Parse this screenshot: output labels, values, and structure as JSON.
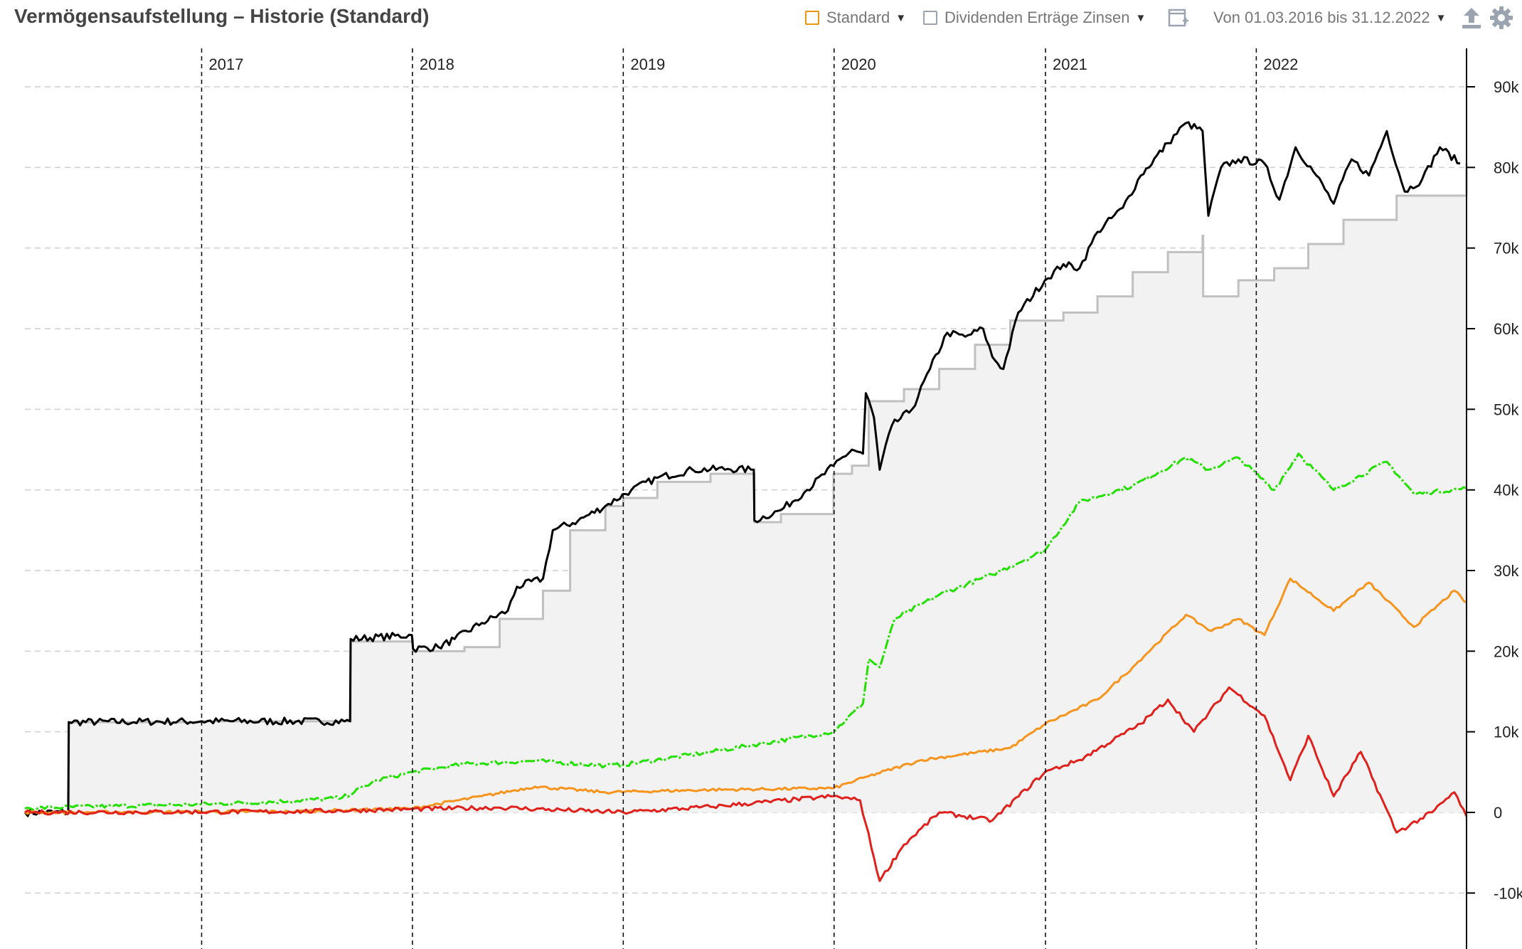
{
  "header": {
    "title": "Vermögensaufstellung – Historie (Standard)",
    "standard_label": "Standard",
    "dividends_label": "Dividenden Erträge Zinsen",
    "date_range_label": "Von 01.03.2016 bis 31.12.2022"
  },
  "icons": {
    "standard_swatch": "orange-square-icon",
    "dividends_swatch": "gray-square-icon",
    "add_chart": "add-chart-icon",
    "export": "upload-icon",
    "settings": "gear-icon",
    "dropdown": "caret-down-icon"
  },
  "colors": {
    "standard": "#f0950f",
    "dividends": "#9aa4b0",
    "total_value": "#000000",
    "invested_capital": "#c0c0c0",
    "invested_fill": "#f2f2f2",
    "green_series": "#22e000",
    "orange_series": "#f7941d",
    "red_series": "#e0201b"
  },
  "chart_data": {
    "type": "line",
    "x_type": "date",
    "xlim": [
      "2016-03-01",
      "2022-12-31"
    ],
    "ylim": [
      -13000,
      93000
    ],
    "x_ticks": [
      {
        "date": "2017-01-01",
        "label": "2017"
      },
      {
        "date": "2018-01-01",
        "label": "2018"
      },
      {
        "date": "2019-01-01",
        "label": "2019"
      },
      {
        "date": "2020-01-01",
        "label": "2020"
      },
      {
        "date": "2021-01-01",
        "label": "2021"
      },
      {
        "date": "2022-01-01",
        "label": "2022"
      }
    ],
    "y_ticks": [
      {
        "value": 90000,
        "label": "90k"
      },
      {
        "value": 80000,
        "label": "80k"
      },
      {
        "value": 70000,
        "label": "70k"
      },
      {
        "value": 60000,
        "label": "60k"
      },
      {
        "value": 50000,
        "label": "50k"
      },
      {
        "value": 40000,
        "label": "40k"
      },
      {
        "value": 30000,
        "label": "30k"
      },
      {
        "value": 20000,
        "label": "20k"
      },
      {
        "value": 10000,
        "label": "10k"
      },
      {
        "value": 0,
        "label": "0"
      },
      {
        "value": -10000,
        "label": "-10k"
      }
    ],
    "grid": true,
    "series": [
      {
        "key": "invested",
        "color": "#c0c0c0",
        "fill": "#f2f2f2",
        "points": [
          [
            "2016-03-01",
            0
          ],
          [
            "2016-05-15",
            0
          ],
          [
            "2016-05-16",
            11200
          ],
          [
            "2017-01-01",
            11300
          ],
          [
            "2017-09-15",
            11300
          ],
          [
            "2017-09-16",
            21200
          ],
          [
            "2018-01-01",
            21500
          ],
          [
            "2018-01-02",
            20000
          ],
          [
            "2018-04-01",
            20500
          ],
          [
            "2018-06-01",
            24000
          ],
          [
            "2018-08-15",
            27500
          ],
          [
            "2018-10-01",
            35000
          ],
          [
            "2018-12-01",
            38000
          ],
          [
            "2019-01-01",
            39000
          ],
          [
            "2019-03-01",
            41000
          ],
          [
            "2019-06-01",
            42000
          ],
          [
            "2019-08-15",
            42000
          ],
          [
            "2019-08-16",
            36000
          ],
          [
            "2019-10-01",
            37000
          ],
          [
            "2019-12-31",
            42000
          ],
          [
            "2020-02-01",
            43000
          ],
          [
            "2020-03-01",
            51000
          ],
          [
            "2020-05-01",
            52500
          ],
          [
            "2020-07-01",
            55000
          ],
          [
            "2020-09-01",
            58000
          ],
          [
            "2020-11-01",
            61000
          ],
          [
            "2021-01-01",
            61000
          ],
          [
            "2021-02-01",
            62000
          ],
          [
            "2021-04-01",
            64000
          ],
          [
            "2021-06-01",
            67000
          ],
          [
            "2021-08-01",
            69500
          ],
          [
            "2021-09-30",
            71500
          ],
          [
            "2021-10-01",
            64000
          ],
          [
            "2021-12-01",
            66000
          ],
          [
            "2022-02-01",
            67500
          ],
          [
            "2022-04-01",
            70500
          ],
          [
            "2022-06-01",
            73500
          ],
          [
            "2022-09-01",
            76500
          ],
          [
            "2022-12-31",
            80500
          ]
        ]
      },
      {
        "key": "total",
        "color": "#000000",
        "points": [
          [
            "2016-03-01",
            0
          ],
          [
            "2016-05-15",
            0
          ],
          [
            "2016-05-16",
            11200
          ],
          [
            "2017-01-01",
            11300
          ],
          [
            "2017-09-15",
            11300
          ],
          [
            "2017-09-16",
            21500
          ],
          [
            "2017-12-31",
            22000
          ],
          [
            "2018-01-02",
            20300
          ],
          [
            "2018-02-15",
            20500
          ],
          [
            "2018-03-15",
            21500
          ],
          [
            "2018-05-01",
            23500
          ],
          [
            "2018-06-15",
            25000
          ],
          [
            "2018-07-01",
            28000
          ],
          [
            "2018-08-15",
            29000
          ],
          [
            "2018-09-01",
            35000
          ],
          [
            "2018-10-15",
            36200
          ],
          [
            "2018-12-01",
            38000
          ],
          [
            "2019-01-15",
            40000
          ],
          [
            "2019-03-01",
            41500
          ],
          [
            "2019-05-01",
            42500
          ],
          [
            "2019-07-01",
            42600
          ],
          [
            "2019-08-15",
            42500
          ],
          [
            "2019-08-16",
            36200
          ],
          [
            "2019-10-01",
            37500
          ],
          [
            "2019-11-15",
            40000
          ],
          [
            "2019-12-31",
            43000
          ],
          [
            "2020-02-01",
            45000
          ],
          [
            "2020-02-20",
            44500
          ],
          [
            "2020-02-25",
            52000
          ],
          [
            "2020-03-10",
            49000
          ],
          [
            "2020-03-20",
            42500
          ],
          [
            "2020-04-10",
            48000
          ],
          [
            "2020-05-15",
            50000
          ],
          [
            "2020-06-15",
            55000
          ],
          [
            "2020-07-15",
            59500
          ],
          [
            "2020-08-15",
            59000
          ],
          [
            "2020-09-15",
            60000
          ],
          [
            "2020-10-01",
            56500
          ],
          [
            "2020-10-20",
            55000
          ],
          [
            "2020-11-15",
            62000
          ],
          [
            "2020-12-31",
            66000
          ],
          [
            "2021-02-01",
            68000
          ],
          [
            "2021-03-01",
            67500
          ],
          [
            "2021-04-01",
            72000
          ],
          [
            "2021-05-15",
            75000
          ],
          [
            "2021-06-15",
            79000
          ],
          [
            "2021-08-01",
            83000
          ],
          [
            "2021-09-01",
            85500
          ],
          [
            "2021-09-30",
            84500
          ],
          [
            "2021-10-10",
            74000
          ],
          [
            "2021-11-01",
            80000
          ],
          [
            "2021-12-01",
            81000
          ],
          [
            "2022-01-15",
            80500
          ],
          [
            "2022-02-10",
            76000
          ],
          [
            "2022-03-10",
            82500
          ],
          [
            "2022-04-15",
            79000
          ],
          [
            "2022-05-15",
            75500
          ],
          [
            "2022-06-15",
            81000
          ],
          [
            "2022-07-15",
            79000
          ],
          [
            "2022-08-15",
            84500
          ],
          [
            "2022-09-15",
            77000
          ],
          [
            "2022-10-15",
            78500
          ],
          [
            "2022-11-15",
            82500
          ],
          [
            "2022-12-20",
            80500
          ]
        ]
      },
      {
        "key": "green",
        "color": "#22e000",
        "points": [
          [
            "2016-03-01",
            500
          ],
          [
            "2016-08-01",
            800
          ],
          [
            "2017-01-01",
            1000
          ],
          [
            "2017-06-01",
            1400
          ],
          [
            "2017-09-01",
            1800
          ],
          [
            "2017-11-01",
            4000
          ],
          [
            "2018-01-01",
            5000
          ],
          [
            "2018-04-01",
            6000
          ],
          [
            "2018-08-01",
            6400
          ],
          [
            "2018-12-01",
            5800
          ],
          [
            "2019-01-01",
            5900
          ],
          [
            "2019-06-01",
            7500
          ],
          [
            "2019-12-31",
            10000
          ],
          [
            "2020-02-20",
            13500
          ],
          [
            "2020-03-01",
            19000
          ],
          [
            "2020-03-20",
            18000
          ],
          [
            "2020-04-15",
            24000
          ],
          [
            "2020-07-01",
            27000
          ],
          [
            "2020-10-01",
            29500
          ],
          [
            "2020-12-31",
            32500
          ],
          [
            "2021-03-01",
            38500
          ],
          [
            "2021-06-01",
            40500
          ],
          [
            "2021-09-01",
            44000
          ],
          [
            "2021-10-10",
            42500
          ],
          [
            "2021-12-01",
            44000
          ],
          [
            "2022-02-01",
            40000
          ],
          [
            "2022-03-15",
            44500
          ],
          [
            "2022-05-15",
            40000
          ],
          [
            "2022-08-15",
            43500
          ],
          [
            "2022-10-01",
            39500
          ],
          [
            "2022-12-31",
            40200
          ]
        ]
      },
      {
        "key": "orange",
        "color": "#f7941d",
        "points": [
          [
            "2016-03-01",
            0
          ],
          [
            "2017-06-01",
            100
          ],
          [
            "2018-01-01",
            500
          ],
          [
            "2018-05-01",
            2000
          ],
          [
            "2018-08-01",
            3200
          ],
          [
            "2018-12-01",
            2500
          ],
          [
            "2019-06-01",
            2800
          ],
          [
            "2019-12-31",
            3000
          ],
          [
            "2020-03-01",
            4500
          ],
          [
            "2020-06-01",
            6500
          ],
          [
            "2020-11-01",
            8000
          ],
          [
            "2021-01-01",
            11000
          ],
          [
            "2021-04-01",
            14000
          ],
          [
            "2021-06-01",
            18000
          ],
          [
            "2021-09-01",
            24500
          ],
          [
            "2021-10-15",
            22500
          ],
          [
            "2021-12-01",
            24000
          ],
          [
            "2022-01-15",
            22000
          ],
          [
            "2022-03-01",
            29000
          ],
          [
            "2022-05-15",
            25000
          ],
          [
            "2022-07-15",
            28500
          ],
          [
            "2022-10-01",
            23000
          ],
          [
            "2022-12-10",
            27500
          ],
          [
            "2022-12-31",
            26000
          ]
        ]
      },
      {
        "key": "red",
        "color": "#e0201b",
        "points": [
          [
            "2016-03-01",
            0
          ],
          [
            "2017-06-01",
            100
          ],
          [
            "2018-01-01",
            400
          ],
          [
            "2018-06-01",
            600
          ],
          [
            "2019-01-01",
            0
          ],
          [
            "2019-06-01",
            700
          ],
          [
            "2019-12-31",
            2000
          ],
          [
            "2020-02-15",
            1500
          ],
          [
            "2020-03-20",
            -8500
          ],
          [
            "2020-05-01",
            -4000
          ],
          [
            "2020-07-01",
            0
          ],
          [
            "2020-10-01",
            -1000
          ],
          [
            "2020-12-31",
            5000
          ],
          [
            "2021-03-01",
            6500
          ],
          [
            "2021-06-15",
            11000
          ],
          [
            "2021-08-01",
            14000
          ],
          [
            "2021-09-15",
            10000
          ],
          [
            "2021-11-15",
            15500
          ],
          [
            "2022-01-15",
            12000
          ],
          [
            "2022-03-01",
            4000
          ],
          [
            "2022-04-01",
            9500
          ],
          [
            "2022-05-15",
            2000
          ],
          [
            "2022-07-01",
            7500
          ],
          [
            "2022-09-01",
            -2500
          ],
          [
            "2022-11-01",
            0
          ],
          [
            "2022-12-10",
            2500
          ],
          [
            "2022-12-31",
            -500
          ]
        ]
      }
    ]
  }
}
